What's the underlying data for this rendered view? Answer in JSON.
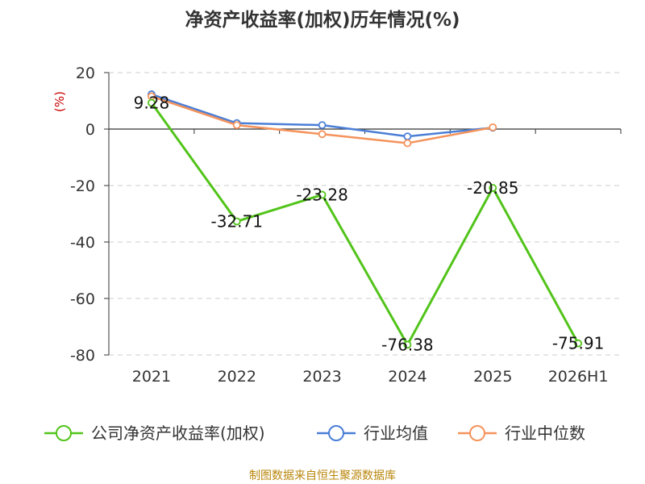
{
  "chart_data": {
    "type": "line",
    "title": "净资产收益率(加权)历年情况(%)",
    "ylabel": "(%)",
    "categories": [
      "2021",
      "2022",
      "2023",
      "2024",
      "2025",
      "2026H1"
    ],
    "ylim": [
      -80,
      20
    ],
    "yticks": [
      20,
      0,
      -20,
      -40,
      -60,
      -80
    ],
    "grid": true,
    "legend_position": "bottom",
    "series": [
      {
        "name": "公司净资产收益率(加权)",
        "color": "#52c41a",
        "values": [
          9.28,
          -32.71,
          -23.28,
          -76.38,
          -20.85,
          -75.91
        ],
        "labels": [
          "9.28",
          "-32.71",
          "-23.28",
          "-76.38",
          "-20.85",
          "-75.91"
        ]
      },
      {
        "name": "行业均值",
        "color": "#4a7fd6",
        "values": [
          12.3,
          2.1,
          1.4,
          -2.6,
          0.5,
          null
        ]
      },
      {
        "name": "行业中位数",
        "color": "#f4935c",
        "values": [
          11.6,
          1.4,
          -1.8,
          -5.0,
          0.6,
          null
        ]
      }
    ]
  },
  "source": "制图数据来自恒生聚源数据库"
}
